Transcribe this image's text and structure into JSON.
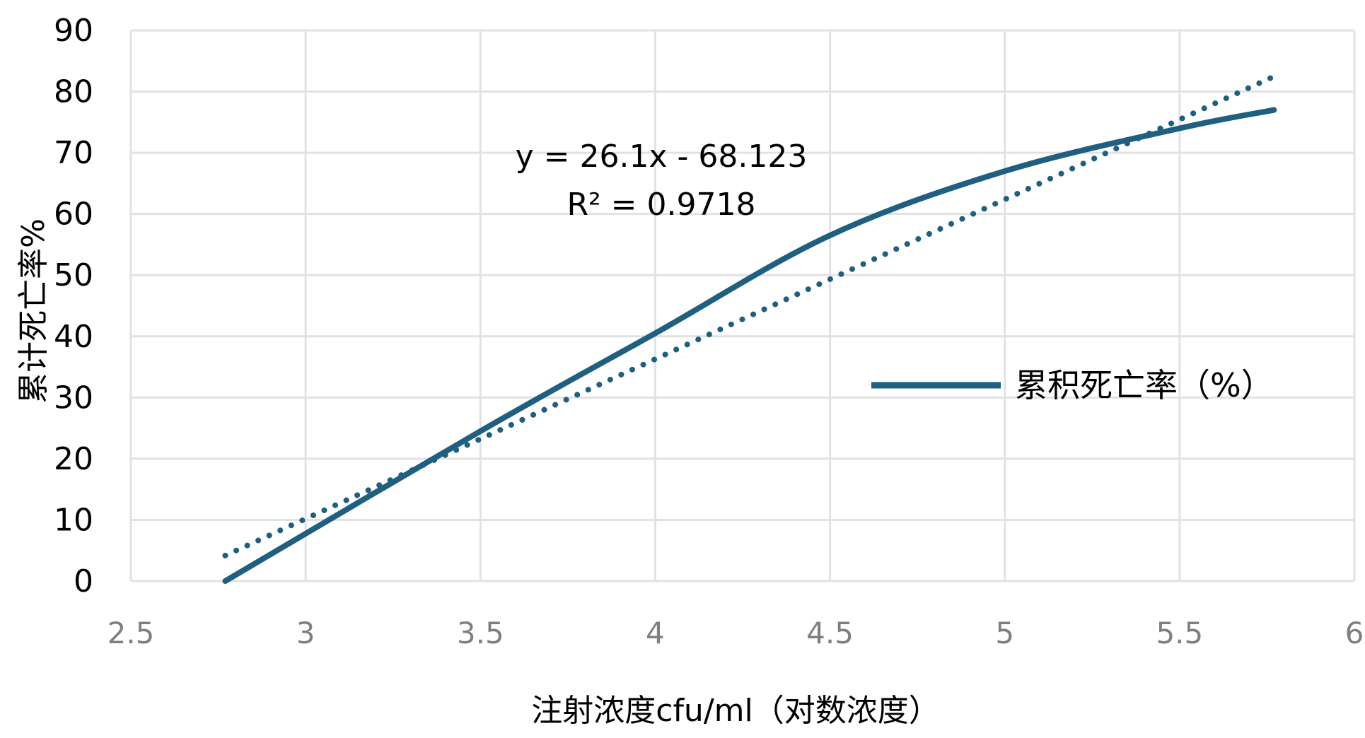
{
  "chart_data": {
    "type": "line",
    "xlabel": "注射浓度cfu/ml（对数浓度）",
    "ylabel": "累计死亡率%",
    "xlim": [
      2.5,
      6
    ],
    "ylim": [
      0,
      90
    ],
    "x_ticks": [
      "2.5",
      "3",
      "3.5",
      "4",
      "4.5",
      "5",
      "5.5",
      "6"
    ],
    "y_ticks": [
      "0",
      "10",
      "20",
      "30",
      "40",
      "50",
      "60",
      "70",
      "80",
      "90"
    ],
    "grid": true,
    "legend_position": "right",
    "series": [
      {
        "name": "累积死亡率（%）",
        "color": "#1f5f7f",
        "x": [
          2.77,
          3.5,
          4.0,
          4.5,
          5.0,
          5.5,
          5.77
        ],
        "y": [
          0,
          24.5,
          40.5,
          56.5,
          67,
          74,
          77
        ]
      }
    ],
    "trendline": {
      "style": "dotted",
      "color": "#1f5f7f",
      "equation": "y = 26.1x - 68.123",
      "r_squared": "R² = 0.9718",
      "slope": 26.1,
      "intercept": -68.123,
      "x_range": [
        2.77,
        5.77
      ]
    }
  }
}
